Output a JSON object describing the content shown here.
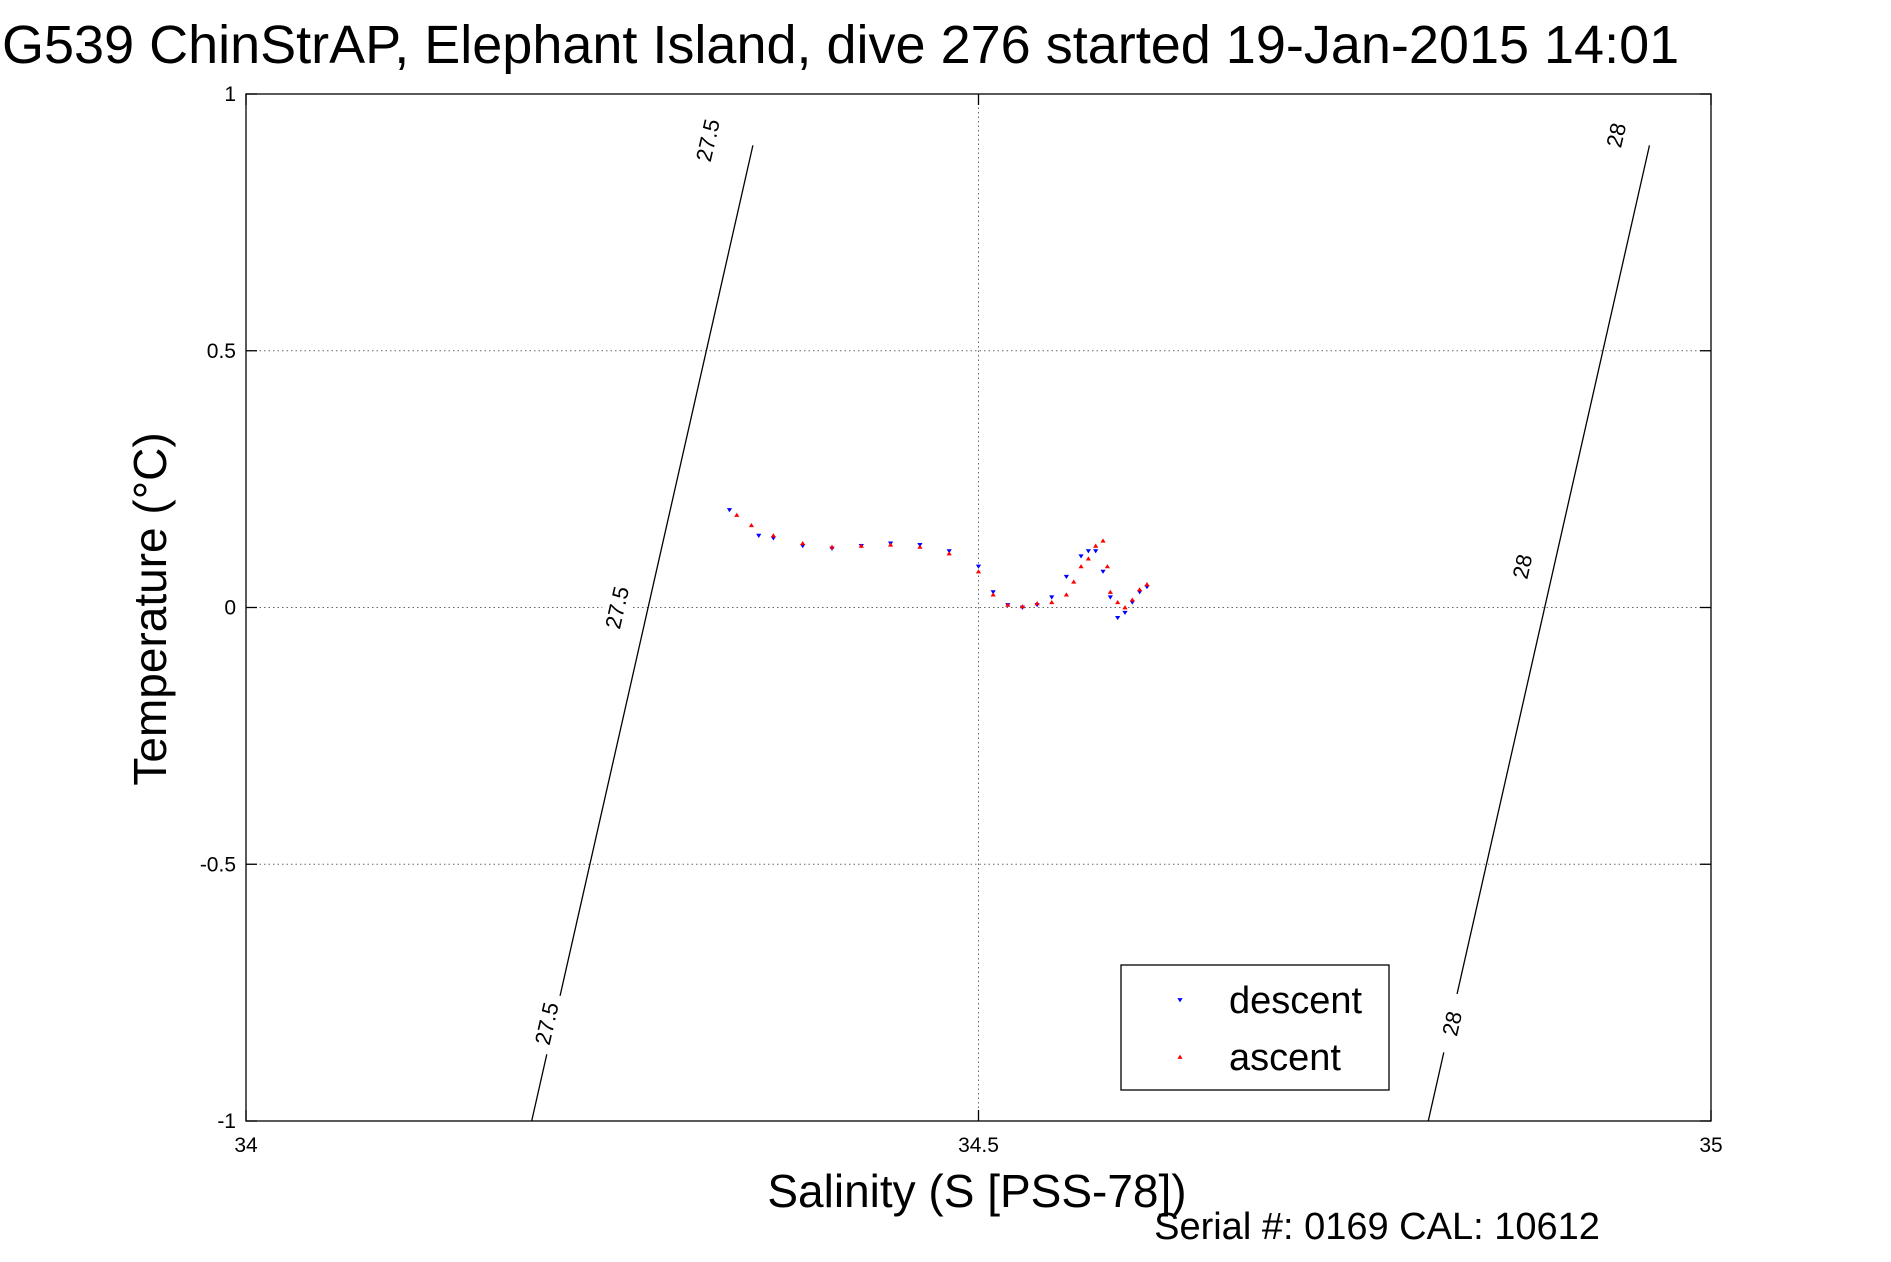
{
  "chart_data": {
    "type": "scatter",
    "title": "G539 ChinStrAP, Elephant Island, dive 276 started 19-Jan-2015 14:01",
    "xlabel": "Salinity (S [PSS-78])",
    "ylabel": "Temperature (°C)",
    "xlim": [
      34,
      35
    ],
    "ylim": [
      -1,
      1
    ],
    "xticks": [
      "34",
      "34.5",
      "35"
    ],
    "yticks": [
      "1",
      "0.5",
      "0",
      "-0.5",
      "-1"
    ],
    "xtick_values": [
      34,
      34.5,
      35
    ],
    "ytick_values": [
      1,
      0.5,
      0,
      -0.5,
      -1
    ],
    "grid": true,
    "legend_position": "bottom-right",
    "footer": "Serial #: 0169 CAL: 10612",
    "density_contours": [
      {
        "label": "27.5",
        "line": [
          [
            34.195,
            -1
          ],
          [
            34.346,
            0.9
          ]
        ],
        "label_points": [
          [
            34.205,
            -0.81
          ],
          [
            34.253,
            0.0
          ],
          [
            34.315,
            0.91
          ]
        ]
      },
      {
        "label": "28",
        "line": [
          [
            34.807,
            -1
          ],
          [
            34.958,
            0.9
          ]
        ],
        "label_points": [
          [
            34.823,
            -0.81
          ],
          [
            34.871,
            0.08
          ],
          [
            34.935,
            0.92
          ]
        ]
      }
    ],
    "series": [
      {
        "name": "descent",
        "color": "#0000ff",
        "marker": "triangle-down",
        "points": [
          [
            34.33,
            0.19
          ],
          [
            34.35,
            0.14
          ],
          [
            34.36,
            0.135
          ],
          [
            34.38,
            0.12
          ],
          [
            34.4,
            0.115
          ],
          [
            34.42,
            0.12
          ],
          [
            34.44,
            0.125
          ],
          [
            34.46,
            0.122
          ],
          [
            34.48,
            0.11
          ],
          [
            34.5,
            0.08
          ],
          [
            34.51,
            0.03
          ],
          [
            34.52,
            0.005
          ],
          [
            34.53,
            0.0
          ],
          [
            34.54,
            0.005
          ],
          [
            34.55,
            0.02
          ],
          [
            34.56,
            0.06
          ],
          [
            34.57,
            0.1
          ],
          [
            34.575,
            0.11
          ],
          [
            34.58,
            0.11
          ],
          [
            34.585,
            0.07
          ],
          [
            34.59,
            0.02
          ],
          [
            34.595,
            -0.02
          ],
          [
            34.6,
            -0.01
          ],
          [
            34.605,
            0.01
          ],
          [
            34.61,
            0.03
          ],
          [
            34.615,
            0.04
          ]
        ]
      },
      {
        "name": "ascent",
        "color": "#ff0000",
        "marker": "triangle-up",
        "points": [
          [
            34.335,
            0.18
          ],
          [
            34.345,
            0.16
          ],
          [
            34.36,
            0.14
          ],
          [
            34.38,
            0.125
          ],
          [
            34.4,
            0.118
          ],
          [
            34.42,
            0.12
          ],
          [
            34.44,
            0.122
          ],
          [
            34.46,
            0.118
          ],
          [
            34.48,
            0.105
          ],
          [
            34.5,
            0.07
          ],
          [
            34.51,
            0.025
          ],
          [
            34.52,
            0.005
          ],
          [
            34.53,
            0.002
          ],
          [
            34.54,
            0.008
          ],
          [
            34.55,
            0.01
          ],
          [
            34.56,
            0.025
          ],
          [
            34.565,
            0.05
          ],
          [
            34.57,
            0.08
          ],
          [
            34.575,
            0.095
          ],
          [
            34.58,
            0.12
          ],
          [
            34.585,
            0.13
          ],
          [
            34.588,
            0.08
          ],
          [
            34.59,
            0.03
          ],
          [
            34.595,
            0.01
          ],
          [
            34.6,
            0.0
          ],
          [
            34.605,
            0.015
          ],
          [
            34.61,
            0.035
          ],
          [
            34.615,
            0.045
          ]
        ]
      }
    ]
  }
}
